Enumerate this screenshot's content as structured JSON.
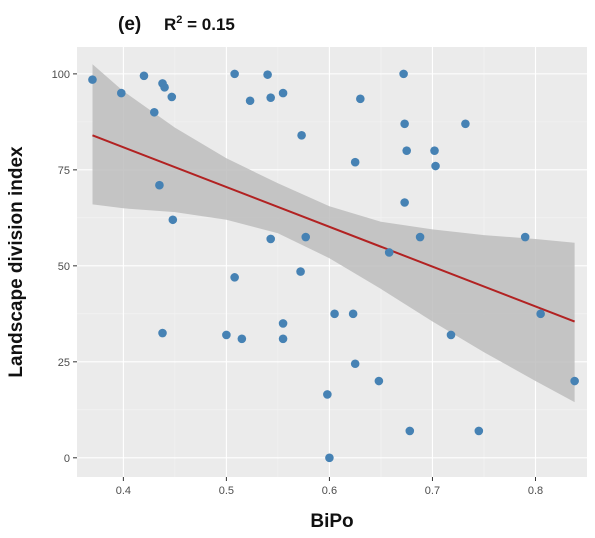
{
  "chart_data": {
    "type": "scatter",
    "panel_label": "(e)",
    "annotation": {
      "prefix": "R",
      "superscript": "2",
      "suffix": " = 0.15"
    },
    "xlabel": "BiPo",
    "ylabel": "Landscape division  index",
    "xlim": [
      0.355,
      0.85
    ],
    "ylim": [
      -5,
      107
    ],
    "xticks": [
      0.4,
      0.5,
      0.6,
      0.7,
      0.8
    ],
    "yticks": [
      0,
      25,
      50,
      75,
      100
    ],
    "xtick_labels": [
      "0.4",
      "0.5",
      "0.6",
      "0.7",
      "0.8"
    ],
    "ytick_labels": [
      "0",
      "25",
      "50",
      "75",
      "100"
    ],
    "grid": true,
    "point_color": "#4682b4",
    "line_color": "#b22222",
    "band_color": "#bdbdbd",
    "panel_background": "#ebebeb",
    "points": [
      [
        0.37,
        98.5
      ],
      [
        0.398,
        95.0
      ],
      [
        0.42,
        99.5
      ],
      [
        0.43,
        90.0
      ],
      [
        0.435,
        71.0
      ],
      [
        0.438,
        97.5
      ],
      [
        0.44,
        96.5
      ],
      [
        0.447,
        94.0
      ],
      [
        0.448,
        62.0
      ],
      [
        0.438,
        32.5
      ],
      [
        0.508,
        100.0
      ],
      [
        0.508,
        47.0
      ],
      [
        0.523,
        93.0
      ],
      [
        0.54,
        99.8
      ],
      [
        0.543,
        93.8
      ],
      [
        0.543,
        57.0
      ],
      [
        0.555,
        95.0
      ],
      [
        0.555,
        35.0
      ],
      [
        0.555,
        31.0
      ],
      [
        0.5,
        32.0
      ],
      [
        0.515,
        31.0
      ],
      [
        0.573,
        84.0
      ],
      [
        0.577,
        57.5
      ],
      [
        0.572,
        48.5
      ],
      [
        0.598,
        16.5
      ],
      [
        0.6,
        0.0
      ],
      [
        0.605,
        37.5
      ],
      [
        0.623,
        37.5
      ],
      [
        0.625,
        77.0
      ],
      [
        0.625,
        24.5
      ],
      [
        0.63,
        93.5
      ],
      [
        0.648,
        20.0
      ],
      [
        0.658,
        53.5
      ],
      [
        0.672,
        100.0
      ],
      [
        0.673,
        87.0
      ],
      [
        0.673,
        66.5
      ],
      [
        0.675,
        80.0
      ],
      [
        0.678,
        7.0
      ],
      [
        0.688,
        57.5
      ],
      [
        0.702,
        80.0
      ],
      [
        0.703,
        76.0
      ],
      [
        0.718,
        32.0
      ],
      [
        0.732,
        87.0
      ],
      [
        0.745,
        7.0
      ],
      [
        0.79,
        57.5
      ],
      [
        0.805,
        37.5
      ],
      [
        0.838,
        20.0
      ]
    ],
    "fit_line": {
      "x": [
        0.37,
        0.838
      ],
      "y": [
        84.0,
        35.5
      ]
    },
    "confidence_band": {
      "x": [
        0.37,
        0.4,
        0.45,
        0.5,
        0.55,
        0.6,
        0.65,
        0.7,
        0.75,
        0.8,
        0.838
      ],
      "upper": [
        102.5,
        95.5,
        86.0,
        78.0,
        71.5,
        65.5,
        61.5,
        59.5,
        58.0,
        57.0,
        56.0
      ],
      "lower": [
        66.0,
        65.0,
        64.0,
        62.0,
        58.5,
        52.0,
        44.0,
        35.5,
        27.5,
        20.0,
        14.5
      ]
    }
  }
}
